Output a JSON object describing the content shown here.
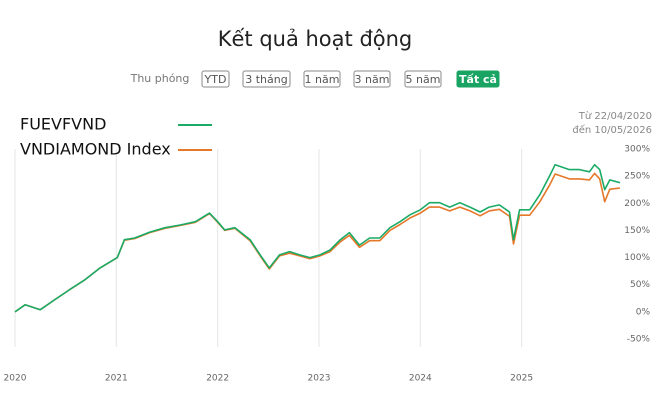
{
  "chart_data": {
    "type": "line",
    "title": "Kết quả hoạt động",
    "zoom_label": "Thu phóng",
    "zoom_buttons": [
      "YTD",
      "3 tháng",
      "1 năm",
      "3 năm",
      "5 năm",
      "Tất cả"
    ],
    "zoom_active": 5,
    "range_from": "Từ 22/04/2020",
    "range_to": "đến 10/05/2026",
    "legend": "top-left",
    "x": [
      2020.0,
      2020.1,
      2020.25,
      2020.39,
      2020.54,
      2020.69,
      2020.84,
      2021.01,
      2021.08,
      2021.18,
      2021.33,
      2021.48,
      2021.63,
      2021.78,
      2021.92,
      2022.0,
      2022.07,
      2022.17,
      2022.32,
      2022.42,
      2022.51,
      2022.61,
      2022.71,
      2022.81,
      2022.91,
      2023.01,
      2023.11,
      2023.21,
      2023.3,
      2023.4,
      2023.5,
      2023.6,
      2023.7,
      2023.8,
      2023.9,
      2024.0,
      2024.09,
      2024.19,
      2024.29,
      2024.39,
      2024.49,
      2024.59,
      2024.68,
      2024.78,
      2024.88,
      2024.92,
      2024.98,
      2025.08,
      2025.18,
      2025.28,
      2025.33,
      2025.47,
      2025.57,
      2025.67,
      2025.72,
      2025.77,
      2025.82,
      2025.87,
      2025.97
    ],
    "series": [
      {
        "name": "FUEVFVND",
        "color": "#1aab67",
        "values": [
          0,
          13,
          4,
          22,
          41,
          59,
          81,
          100,
          133,
          136,
          147,
          155,
          160,
          166,
          182,
          166,
          151,
          155,
          133,
          105,
          81,
          105,
          111,
          105,
          100,
          105,
          114,
          133,
          146,
          123,
          136,
          136,
          155,
          166,
          179,
          188,
          201,
          201,
          193,
          201,
          193,
          184,
          193,
          197,
          184,
          133,
          188,
          188,
          216,
          252,
          271,
          262,
          262,
          258,
          271,
          262,
          225,
          243,
          238
        ]
      },
      {
        "name": "VNDIAMOND Index",
        "color": "#e6782a",
        "values": [
          0,
          13,
          4,
          22,
          41,
          59,
          81,
          100,
          132,
          135,
          146,
          154,
          159,
          165,
          181,
          165,
          150,
          154,
          131,
          103,
          79,
          103,
          108,
          103,
          98,
          103,
          111,
          129,
          141,
          119,
          131,
          131,
          150,
          161,
          173,
          182,
          193,
          193,
          186,
          193,
          186,
          177,
          186,
          189,
          176,
          125,
          178,
          178,
          203,
          235,
          254,
          245,
          245,
          243,
          255,
          245,
          203,
          226,
          228
        ]
      }
    ],
    "xlim": [
      2020,
      2026.03
    ],
    "xticks": [
      2020,
      2021,
      2022,
      2023,
      2024,
      2025
    ],
    "ylim": [
      -50,
      300
    ],
    "yticks": [
      {
        "value": -50,
        "label": "-50%"
      },
      {
        "value": 0,
        "label": "0%"
      },
      {
        "value": 50,
        "label": "50%"
      },
      {
        "value": 100,
        "label": "100%"
      },
      {
        "value": 150,
        "label": "150%"
      },
      {
        "value": 200,
        "label": "200%"
      },
      {
        "value": 250,
        "label": "250%"
      },
      {
        "value": 300,
        "label": "300%"
      }
    ],
    "grid": "x"
  }
}
